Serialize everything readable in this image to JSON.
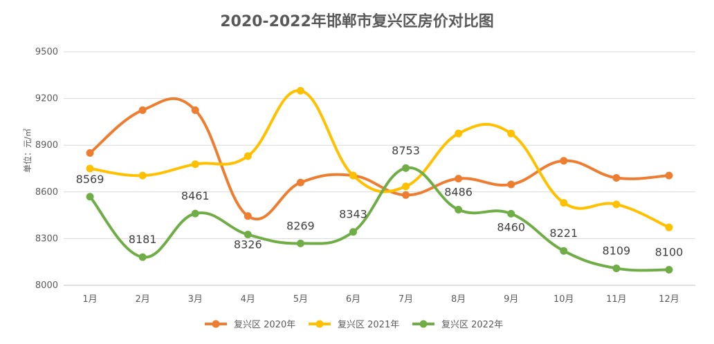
{
  "chart_data": {
    "type": "line",
    "title": "2020-2022年邯郸市复兴区房价对比图",
    "xlabel": "",
    "ylabel": "单位：元/㎡",
    "ylim": [
      8000,
      9500
    ],
    "yticks": [
      8000,
      8300,
      8600,
      8900,
      9200,
      9500
    ],
    "categories": [
      "1月",
      "2月",
      "3月",
      "4月",
      "5月",
      "6月",
      "7月",
      "8月",
      "9月",
      "10月",
      "11月",
      "12月"
    ],
    "grid": true,
    "legend_position": "bottom",
    "series": [
      {
        "name": "复兴区 2020年",
        "color": "#ED7D31",
        "values": [
          8850,
          9125,
          9125,
          8445,
          8660,
          8705,
          8580,
          8685,
          8648,
          8800,
          8690,
          8705
        ],
        "labels": []
      },
      {
        "name": "复兴区 2021年",
        "color": "#FFC000",
        "values": [
          8750,
          8705,
          8778,
          8830,
          9250,
          8705,
          8635,
          8975,
          8975,
          8530,
          8520,
          8372
        ],
        "labels": []
      },
      {
        "name": "复兴区 2022年",
        "color": "#70AD47",
        "values": [
          8569,
          8181,
          8461,
          8326,
          8269,
          8343,
          8753,
          8486,
          8460,
          8221,
          8109,
          8100
        ],
        "labels": [
          "8569",
          "8181",
          "8461",
          "8326",
          "8269",
          "8343",
          "8753",
          "8486",
          "8460",
          "8221",
          "8109",
          "8100"
        ]
      }
    ]
  }
}
